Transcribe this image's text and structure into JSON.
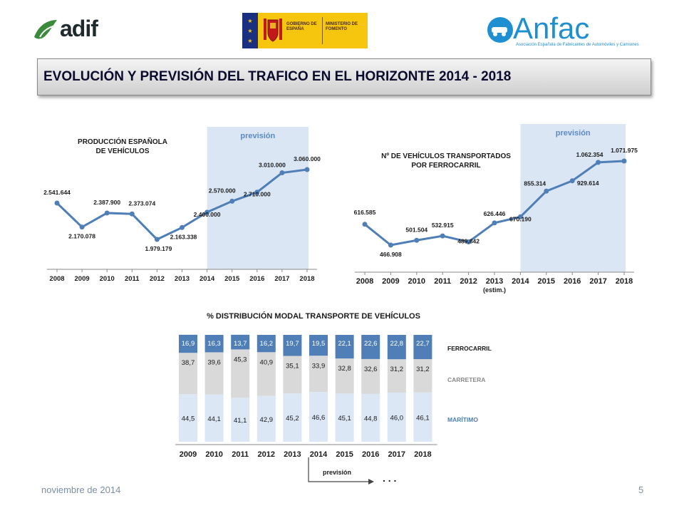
{
  "logos": {
    "adif": "adif",
    "gobierno": "GOBIERNO DE ESPAÑA",
    "ministerio": "MINISTERIO DE FOMENTO",
    "anfac": "Anfac",
    "anfac_sub": "Asociación Española de Fabricantes de Automóviles y Camiones"
  },
  "title": "EVOLUCIÓN Y PREVISIÓN DEL TRAFICO EN EL HORIZONTE 2014 - 2018",
  "footer": {
    "date": "noviembre de 2014",
    "page": "5"
  },
  "colors": {
    "line": "#4f7fb6",
    "shade": "#dbe6f4",
    "prevision_label": "#5b8bc6",
    "rail": "#4f7fb6",
    "road": "#d9d9d9",
    "sea": "#dce7f5"
  },
  "chart_data": [
    {
      "type": "line",
      "title": "PRODUCCIÓN ESPAÑOLA DE VEHÍCULOS",
      "x": [
        "2008",
        "2009",
        "2010",
        "2011",
        "2012",
        "2013",
        "2014",
        "2015",
        "2016",
        "2017",
        "2018"
      ],
      "x_sublabels": [
        "",
        "",
        "",
        "",
        "",
        "",
        "",
        "",
        "",
        "",
        ""
      ],
      "values": [
        2541644,
        2170078,
        2387900,
        2373074,
        1979179,
        2163338,
        2400000,
        2570000,
        2710000,
        3010000,
        3060000
      ],
      "labels": [
        "2.541.644",
        "2.170.078",
        "2.387.900",
        "2.373.074",
        "1.979.179",
        "2.163.338",
        "2.400.000",
        "2.570.000",
        "2.710.000",
        "3.010.000",
        "3.060.000"
      ],
      "shaded_from": "2014",
      "shaded_label": "previsión"
    },
    {
      "type": "line",
      "title": "Nº DE VEHÍCULOS TRANSPORTADOS POR FERROCARRIL",
      "x": [
        "2008",
        "2009",
        "2010",
        "2011",
        "2012",
        "2013",
        "2014",
        "2015",
        "2016",
        "2017",
        "2018"
      ],
      "x_sublabels": [
        "",
        "",
        "",
        "",
        "",
        "(estim.)",
        "",
        "",
        "",
        "",
        ""
      ],
      "values": [
        616585,
        466908,
        501504,
        532915,
        489842,
        626446,
        670190,
        855314,
        929614,
        1062354,
        1071975
      ],
      "labels": [
        "616.585",
        "466.908",
        "501.504",
        "532.915",
        "489.842",
        "626.446",
        "670.190",
        "855.314",
        "929.614",
        "1.062.354",
        "1.071.975"
      ],
      "shaded_from": "2014",
      "shaded_label": "previsión"
    },
    {
      "type": "bar",
      "stacked": true,
      "title": "% DISTRIBUCIÓN MODAL TRANSPORTE DE VEHÍCULOS",
      "categories": [
        "2009",
        "2010",
        "2011",
        "2012",
        "2013",
        "2014",
        "2015",
        "2016",
        "2017",
        "2018"
      ],
      "series": [
        {
          "name": "MARÍTIMO",
          "values": [
            44.5,
            44.1,
            41.1,
            42.9,
            45.2,
            46.6,
            45.1,
            44.8,
            46.0,
            46.1
          ],
          "labels": [
            "44,5",
            "44,1",
            "41,1",
            "42,9",
            "45,2",
            "46,6",
            "45,1",
            "44,8",
            "46,0",
            "46,1"
          ]
        },
        {
          "name": "CARRETERA",
          "values": [
            38.7,
            39.6,
            45.3,
            40.9,
            35.1,
            33.9,
            32.8,
            32.6,
            31.2,
            31.2
          ],
          "labels": [
            "38,7",
            "39,6",
            "45,3",
            "40,9",
            "35,1",
            "33,9",
            "32,8",
            "32,6",
            "31,2",
            "31,2"
          ]
        },
        {
          "name": "FERROCARRIL",
          "values": [
            16.9,
            16.3,
            13.7,
            16.2,
            19.7,
            19.5,
            22.1,
            22.6,
            22.8,
            22.7
          ],
          "labels": [
            "16,9",
            "16,3",
            "13,7",
            "16,2",
            "19,7",
            "19,5",
            "22,1",
            "22,6",
            "22,8",
            "22,7"
          ]
        }
      ],
      "prevision_label": "previsión",
      "ellipsis": ". . ."
    }
  ]
}
